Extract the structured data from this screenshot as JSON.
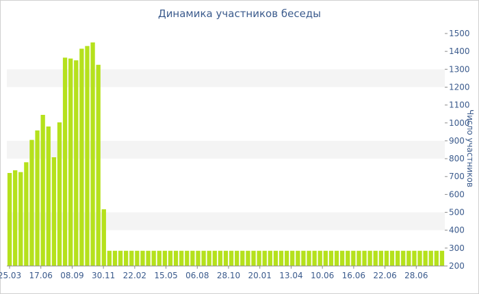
{
  "chart_data": {
    "type": "bar",
    "title": "Динамика участников беседы",
    "xlabel": "",
    "ylabel": "Число участников",
    "ylim": [
      200,
      1500
    ],
    "yticks": [
      200,
      300,
      400,
      500,
      600,
      700,
      800,
      900,
      1000,
      1100,
      1200,
      1300,
      1400,
      1500
    ],
    "xtick_labels": [
      "25.03",
      "17.06",
      "08.09",
      "30.11",
      "22.02",
      "15.05",
      "06.08",
      "28.10",
      "20.01",
      "13.04",
      "10.06",
      "16.06",
      "22.06",
      "28.06"
    ],
    "grid": "horizontal alternating bands",
    "y_axis_position": "right",
    "bar_color": "#b5e11c",
    "values": [
      720,
      735,
      725,
      780,
      905,
      958,
      1045,
      980,
      808,
      1003,
      1365,
      1360,
      1350,
      1415,
      1430,
      1450,
      1325,
      517,
      285,
      285,
      285,
      285,
      285,
      285,
      285,
      285,
      285,
      285,
      285,
      285,
      285,
      285,
      285,
      285,
      285,
      285,
      285,
      285,
      285,
      285,
      285,
      285,
      285,
      285,
      285,
      285,
      285,
      285,
      285,
      285,
      285,
      285,
      285,
      285,
      285,
      285,
      285,
      285,
      285,
      285,
      285,
      285,
      285,
      285,
      285,
      285,
      285,
      285,
      285,
      285,
      285,
      285,
      285,
      285,
      285,
      285,
      285,
      285,
      285
    ]
  }
}
